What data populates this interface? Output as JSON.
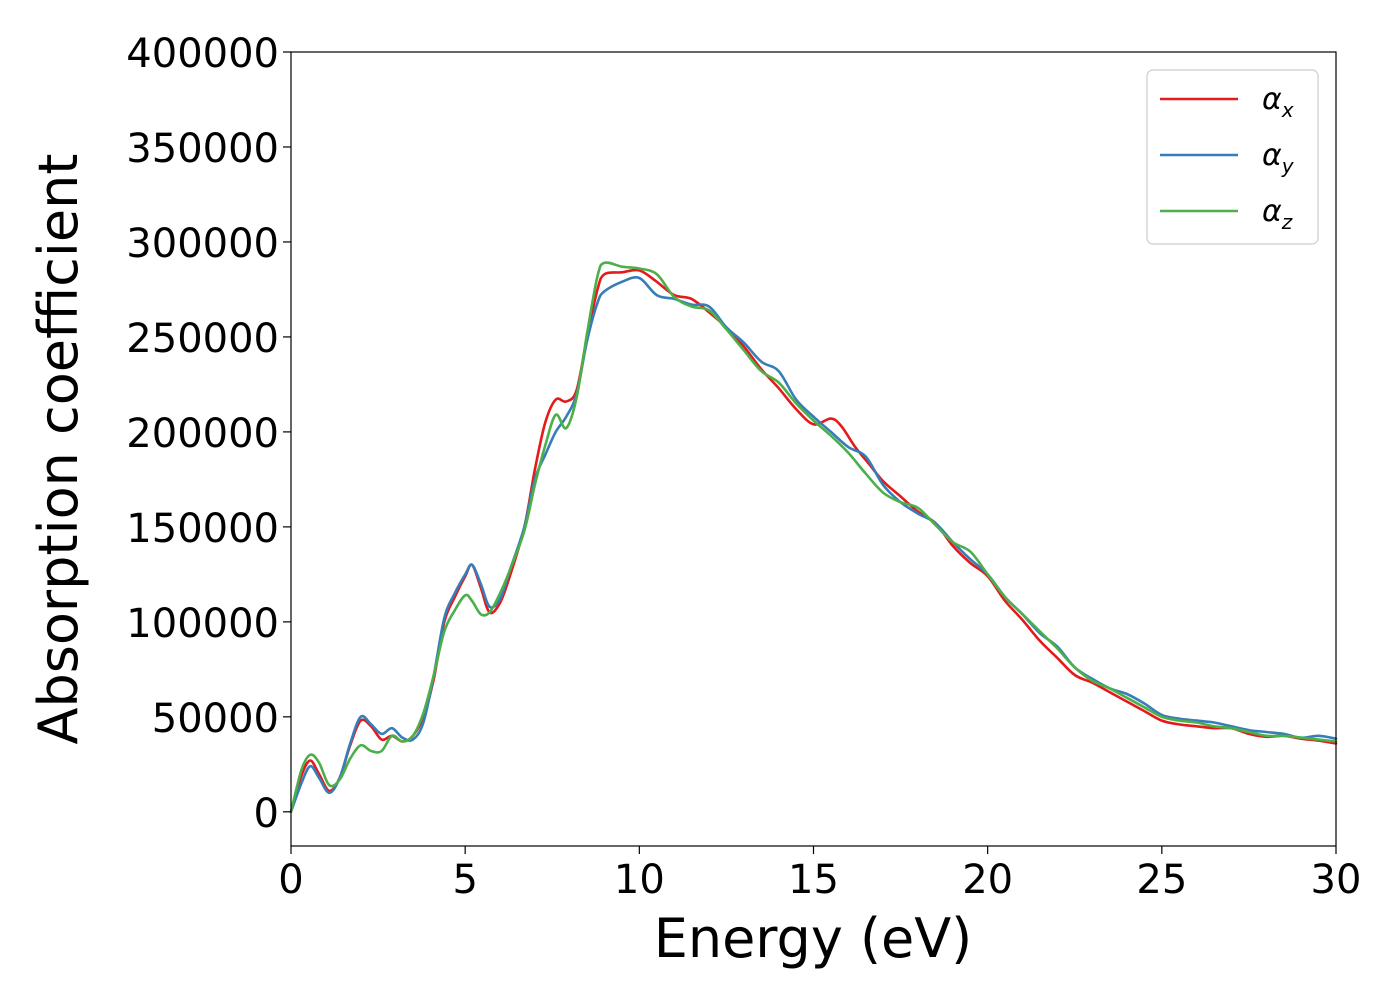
{
  "chart_data": {
    "type": "line",
    "xlabel": "Energy (eV)",
    "ylabel": "Absorption coefficient",
    "xlim": [
      0,
      30
    ],
    "ylim": [
      -18000,
      400000
    ],
    "x_ticks": [
      0,
      5,
      10,
      15,
      20,
      25,
      30
    ],
    "y_ticks": [
      0,
      50000,
      100000,
      150000,
      200000,
      250000,
      300000,
      350000,
      400000
    ],
    "x_tick_labels": [
      "0",
      "5",
      "10",
      "15",
      "20",
      "25",
      "30"
    ],
    "y_tick_labels": [
      "0",
      "50000",
      "100000",
      "150000",
      "200000",
      "250000",
      "300000",
      "350000",
      "400000"
    ],
    "legend_position": "top-right",
    "grid": false,
    "series": [
      {
        "name": "α_x",
        "legend_base": "α",
        "legend_sub": "x",
        "color": "#e41a1c",
        "points": [
          [
            0,
            0
          ],
          [
            0.3,
            19000
          ],
          [
            0.55,
            27000
          ],
          [
            0.8,
            20000
          ],
          [
            1.1,
            11000
          ],
          [
            1.4,
            18000
          ],
          [
            1.7,
            35000
          ],
          [
            2.0,
            48000
          ],
          [
            2.3,
            45000
          ],
          [
            2.6,
            38000
          ],
          [
            2.9,
            40000
          ],
          [
            3.2,
            37000
          ],
          [
            3.5,
            40000
          ],
          [
            3.8,
            50000
          ],
          [
            4.1,
            70000
          ],
          [
            4.4,
            100000
          ],
          [
            4.7,
            113000
          ],
          [
            5.0,
            124000
          ],
          [
            5.2,
            130000
          ],
          [
            5.45,
            118000
          ],
          [
            5.7,
            105000
          ],
          [
            6.0,
            110000
          ],
          [
            6.3,
            125000
          ],
          [
            6.7,
            150000
          ],
          [
            7.0,
            180000
          ],
          [
            7.3,
            205000
          ],
          [
            7.6,
            217000
          ],
          [
            7.9,
            216000
          ],
          [
            8.2,
            222000
          ],
          [
            8.5,
            250000
          ],
          [
            8.8,
            275000
          ],
          [
            9.0,
            283000
          ],
          [
            9.5,
            284000
          ],
          [
            10.0,
            285000
          ],
          [
            10.5,
            279000
          ],
          [
            11.0,
            272000
          ],
          [
            11.5,
            270000
          ],
          [
            12.0,
            263000
          ],
          [
            12.5,
            255000
          ],
          [
            13.0,
            245000
          ],
          [
            13.5,
            233000
          ],
          [
            14.0,
            223000
          ],
          [
            14.5,
            212000
          ],
          [
            15.0,
            204000
          ],
          [
            15.5,
            207000
          ],
          [
            15.8,
            203000
          ],
          [
            16.2,
            192000
          ],
          [
            16.6,
            183000
          ],
          [
            17.0,
            174000
          ],
          [
            17.5,
            166000
          ],
          [
            18.0,
            158000
          ],
          [
            18.5,
            152000
          ],
          [
            19.0,
            140000
          ],
          [
            19.5,
            131000
          ],
          [
            20.0,
            124000
          ],
          [
            20.5,
            111000
          ],
          [
            21.0,
            101000
          ],
          [
            21.5,
            90000
          ],
          [
            22.0,
            81000
          ],
          [
            22.5,
            72000
          ],
          [
            23.0,
            68000
          ],
          [
            23.5,
            63000
          ],
          [
            24.0,
            58000
          ],
          [
            24.5,
            53000
          ],
          [
            25.0,
            48000
          ],
          [
            25.5,
            46000
          ],
          [
            26.0,
            45000
          ],
          [
            26.5,
            44000
          ],
          [
            27.0,
            44000
          ],
          [
            27.5,
            41000
          ],
          [
            28.0,
            39500
          ],
          [
            28.5,
            40000
          ],
          [
            29.0,
            38500
          ],
          [
            29.5,
            37500
          ],
          [
            30.0,
            36000
          ]
        ]
      },
      {
        "name": "α_y",
        "legend_base": "α",
        "legend_sub": "y",
        "color": "#377eb8",
        "points": [
          [
            0,
            0
          ],
          [
            0.3,
            15000
          ],
          [
            0.55,
            24000
          ],
          [
            0.8,
            18000
          ],
          [
            1.1,
            10000
          ],
          [
            1.4,
            18000
          ],
          [
            1.7,
            36000
          ],
          [
            2.0,
            50000
          ],
          [
            2.3,
            46000
          ],
          [
            2.6,
            41000
          ],
          [
            2.9,
            44000
          ],
          [
            3.2,
            39000
          ],
          [
            3.5,
            38000
          ],
          [
            3.8,
            47000
          ],
          [
            4.1,
            72000
          ],
          [
            4.4,
            102000
          ],
          [
            4.7,
            115000
          ],
          [
            5.0,
            125000
          ],
          [
            5.2,
            130000
          ],
          [
            5.45,
            120000
          ],
          [
            5.7,
            108000
          ],
          [
            6.0,
            112000
          ],
          [
            6.3,
            128000
          ],
          [
            6.7,
            150000
          ],
          [
            7.0,
            175000
          ],
          [
            7.3,
            188000
          ],
          [
            7.6,
            200000
          ],
          [
            7.9,
            208000
          ],
          [
            8.2,
            220000
          ],
          [
            8.5,
            248000
          ],
          [
            8.8,
            268000
          ],
          [
            9.0,
            274000
          ],
          [
            9.5,
            279000
          ],
          [
            10.0,
            281000
          ],
          [
            10.5,
            272000
          ],
          [
            11.0,
            270000
          ],
          [
            11.5,
            267000
          ],
          [
            12.0,
            266000
          ],
          [
            12.5,
            255000
          ],
          [
            13.0,
            247000
          ],
          [
            13.5,
            237000
          ],
          [
            14.0,
            232000
          ],
          [
            14.5,
            217000
          ],
          [
            15.0,
            208000
          ],
          [
            15.5,
            200000
          ],
          [
            16.0,
            192000
          ],
          [
            16.5,
            187000
          ],
          [
            17.0,
            172000
          ],
          [
            17.5,
            163000
          ],
          [
            18.0,
            157000
          ],
          [
            18.5,
            152000
          ],
          [
            19.0,
            142000
          ],
          [
            19.5,
            133000
          ],
          [
            20.0,
            125000
          ],
          [
            20.5,
            113000
          ],
          [
            21.0,
            104000
          ],
          [
            21.5,
            94000
          ],
          [
            22.0,
            87000
          ],
          [
            22.5,
            76000
          ],
          [
            23.0,
            70000
          ],
          [
            23.5,
            65000
          ],
          [
            24.0,
            62000
          ],
          [
            24.5,
            57000
          ],
          [
            25.0,
            51000
          ],
          [
            25.5,
            49000
          ],
          [
            26.0,
            48000
          ],
          [
            26.5,
            47000
          ],
          [
            27.0,
            45000
          ],
          [
            27.5,
            43000
          ],
          [
            28.0,
            42000
          ],
          [
            28.5,
            41000
          ],
          [
            29.0,
            39000
          ],
          [
            29.5,
            40000
          ],
          [
            30.0,
            38500
          ]
        ]
      },
      {
        "name": "α_z",
        "legend_base": "α",
        "legend_sub": "z",
        "color": "#4daf4a",
        "points": [
          [
            0,
            0
          ],
          [
            0.3,
            22000
          ],
          [
            0.55,
            30000
          ],
          [
            0.8,
            26000
          ],
          [
            1.1,
            14000
          ],
          [
            1.4,
            17000
          ],
          [
            1.7,
            28000
          ],
          [
            2.0,
            35000
          ],
          [
            2.3,
            32000
          ],
          [
            2.6,
            32000
          ],
          [
            2.9,
            40000
          ],
          [
            3.2,
            37000
          ],
          [
            3.5,
            40000
          ],
          [
            3.8,
            52000
          ],
          [
            4.1,
            72000
          ],
          [
            4.4,
            95000
          ],
          [
            4.7,
            106000
          ],
          [
            5.0,
            114000
          ],
          [
            5.2,
            111000
          ],
          [
            5.45,
            104000
          ],
          [
            5.7,
            105000
          ],
          [
            6.0,
            115000
          ],
          [
            6.3,
            128000
          ],
          [
            6.7,
            148000
          ],
          [
            7.0,
            172000
          ],
          [
            7.3,
            193000
          ],
          [
            7.6,
            209000
          ],
          [
            7.9,
            202000
          ],
          [
            8.2,
            218000
          ],
          [
            8.5,
            252000
          ],
          [
            8.8,
            282000
          ],
          [
            9.0,
            289000
          ],
          [
            9.5,
            287000
          ],
          [
            10.0,
            286000
          ],
          [
            10.5,
            283000
          ],
          [
            11.0,
            271000
          ],
          [
            11.5,
            266000
          ],
          [
            12.0,
            264000
          ],
          [
            12.5,
            254000
          ],
          [
            13.0,
            243000
          ],
          [
            13.5,
            232000
          ],
          [
            14.0,
            226000
          ],
          [
            14.5,
            215000
          ],
          [
            15.0,
            206000
          ],
          [
            15.5,
            198000
          ],
          [
            16.0,
            189000
          ],
          [
            16.5,
            178000
          ],
          [
            17.0,
            168000
          ],
          [
            17.5,
            163000
          ],
          [
            18.0,
            160000
          ],
          [
            18.5,
            151000
          ],
          [
            19.0,
            142000
          ],
          [
            19.5,
            137000
          ],
          [
            20.0,
            125000
          ],
          [
            20.5,
            113000
          ],
          [
            21.0,
            104000
          ],
          [
            21.5,
            95000
          ],
          [
            22.0,
            86000
          ],
          [
            22.5,
            76000
          ],
          [
            23.0,
            69000
          ],
          [
            23.5,
            65000
          ],
          [
            24.0,
            60000
          ],
          [
            24.5,
            55000
          ],
          [
            25.0,
            50000
          ],
          [
            25.5,
            48000
          ],
          [
            26.0,
            47000
          ],
          [
            26.5,
            45000
          ],
          [
            27.0,
            44000
          ],
          [
            27.5,
            42000
          ],
          [
            28.0,
            40000
          ],
          [
            28.5,
            40000
          ],
          [
            29.0,
            39000
          ],
          [
            29.5,
            38000
          ],
          [
            30.0,
            37000
          ]
        ]
      }
    ]
  }
}
